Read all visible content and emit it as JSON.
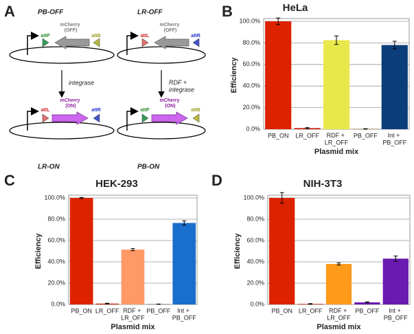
{
  "panel_labels": [
    "A",
    "B",
    "C",
    "D"
  ],
  "diagram": {
    "top_left": {
      "label": "PB-OFF",
      "gene": "mCherry (OFF)",
      "left_site": "attP",
      "right_site": "attB"
    },
    "top_right": {
      "label": "LR-OFF",
      "gene": "mCherry (OFF)",
      "left_site": "attL",
      "right_site": "attR"
    },
    "left_step": "integrase",
    "right_step": "RDF + integrase",
    "bottom_left": {
      "label": "LR-ON",
      "gene": "mCherry (ON)",
      "left_site": "attL",
      "right_site": "attR"
    },
    "bottom_right": {
      "label": "PB-ON",
      "gene": "mCherry (ON)",
      "left_site": "attP",
      "right_site": "attB"
    }
  },
  "chart_data": [
    {
      "type": "bar",
      "title": "HeLa",
      "xlabel": "Plasmid mix",
      "ylabel": "Efficiency",
      "categories": [
        "PB_ON",
        "LR_OFF",
        "RDF + LR_OFF",
        "PB_OFF",
        "Int + PB_OFF"
      ],
      "values": [
        100,
        1,
        82.5,
        0.3,
        78
      ],
      "errors": [
        3,
        0.5,
        4,
        0.2,
        3.5
      ],
      "colors": [
        "#dd2200",
        "#cc1100",
        "#e8e84a",
        "#8b6914",
        "#0a3d7a"
      ],
      "ylim": [
        0,
        100
      ],
      "yticks": [
        {
          "value": 0,
          "label": "0.0%"
        },
        {
          "value": 20,
          "label": "20.0%"
        },
        {
          "value": 40,
          "label": "40.0%"
        },
        {
          "value": 60,
          "label": "60.0%"
        },
        {
          "value": 80,
          "label": "80.0%"
        },
        {
          "value": 100,
          "label": "100.0%"
        }
      ],
      "grid": true
    },
    {
      "type": "bar",
      "title": "HEK-293",
      "xlabel": "Plasmid mix",
      "ylabel": "Efficiency",
      "categories": [
        "PB_ON",
        "LR_OFF",
        "RDF + LR_OFF",
        "PB_OFF",
        "Int + PB_OFF"
      ],
      "values": [
        100,
        0.8,
        51.5,
        0.3,
        76.5
      ],
      "errors": [
        0.5,
        0.3,
        1,
        0.1,
        2
      ],
      "colors": [
        "#dd2200",
        "#cc2200",
        "#ff9966",
        "#444444",
        "#1a6ecc"
      ],
      "ylim": [
        0,
        100
      ],
      "yticks": [
        {
          "value": 0,
          "label": "0.0%"
        },
        {
          "value": 20,
          "label": "20.0%"
        },
        {
          "value": 40,
          "label": "40.0%"
        },
        {
          "value": 60,
          "label": "60.0%"
        },
        {
          "value": 80,
          "label": "80.0%"
        },
        {
          "value": 100,
          "label": "100.0%"
        }
      ],
      "grid": true
    },
    {
      "type": "bar",
      "title": "NIH-3T3",
      "xlabel": "Plasmid mix",
      "ylabel": "Efficiency",
      "categories": [
        "PB_ON",
        "LR_OFF",
        "RDF + LR_OFF",
        "PB_OFF",
        "Int + PB_OFF"
      ],
      "values": [
        100,
        0.5,
        38,
        2,
        43
      ],
      "errors": [
        5,
        0.3,
        1,
        0.5,
        2.5
      ],
      "colors": [
        "#dd2200",
        "#cc2200",
        "#ff9a1a",
        "#6a1ab0",
        "#6a1ab0"
      ],
      "ylim": [
        0,
        100
      ],
      "yticks": [
        {
          "value": 0,
          "label": "0.0%"
        },
        {
          "value": 20,
          "label": "20.0%"
        },
        {
          "value": 40,
          "label": "40.0%"
        },
        {
          "value": 60,
          "label": "60.0%"
        },
        {
          "value": 80,
          "label": "80.0%"
        },
        {
          "value": 100,
          "label": "100.0%"
        }
      ],
      "grid": true
    }
  ]
}
